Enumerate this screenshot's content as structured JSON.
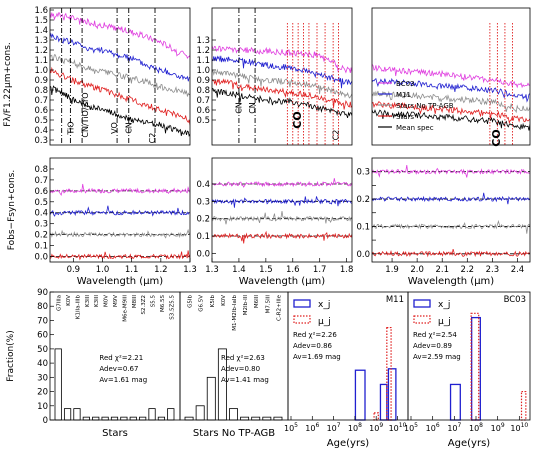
{
  "chart_data": [
    {
      "id": "spec1",
      "type": "line",
      "panel": "top-left",
      "ylabel": "Fλ/F1.22μm+cons.",
      "xlim": [
        0.82,
        1.3
      ],
      "ylim": [
        0.25,
        1.62
      ],
      "yticks": [
        0.3,
        0.4,
        0.5,
        0.6,
        0.7,
        0.8,
        0.9,
        1.0,
        1.1,
        1.2,
        1.3,
        1.4,
        1.5,
        1.6
      ],
      "ytick_labels": [
        "0.3",
        "0.4",
        "0.5",
        "0.6",
        "0.7",
        "0.8",
        "0.9",
        "1.0",
        "1.1",
        "1.2",
        "1.3",
        "1.4",
        "1.5",
        "1.6"
      ],
      "series": [
        {
          "color": "#e040e0",
          "x": [
            0.82,
            0.86,
            0.9,
            0.95,
            1.0,
            1.05,
            1.1,
            1.15,
            1.2,
            1.25,
            1.3
          ],
          "y": [
            1.55,
            1.55,
            1.52,
            1.48,
            1.45,
            1.42,
            1.38,
            1.33,
            1.28,
            1.2,
            1.12
          ]
        },
        {
          "color": "#2020d0",
          "x": [
            0.82,
            0.86,
            0.9,
            0.95,
            1.0,
            1.05,
            1.1,
            1.15,
            1.2,
            1.25,
            1.3
          ],
          "y": [
            1.35,
            1.3,
            1.28,
            1.22,
            1.2,
            1.15,
            1.12,
            1.05,
            1.0,
            0.95,
            0.9
          ]
        },
        {
          "color": "#909090",
          "x": [
            0.82,
            0.86,
            0.9,
            0.95,
            1.0,
            1.05,
            1.1,
            1.15,
            1.2,
            1.25,
            1.3
          ],
          "y": [
            1.15,
            1.1,
            1.08,
            1.02,
            0.98,
            0.95,
            0.92,
            0.88,
            0.83,
            0.8,
            0.75
          ]
        },
        {
          "color": "#e02020",
          "x": [
            0.82,
            0.86,
            0.9,
            0.95,
            1.0,
            1.05,
            1.1,
            1.15,
            1.2,
            1.25,
            1.3
          ],
          "y": [
            1.0,
            0.95,
            0.9,
            0.85,
            0.8,
            0.75,
            0.7,
            0.65,
            0.6,
            0.55,
            0.5
          ]
        },
        {
          "color": "#000000",
          "x": [
            0.82,
            0.86,
            0.9,
            0.95,
            1.0,
            1.05,
            1.1,
            1.15,
            1.2,
            1.25,
            1.3
          ],
          "y": [
            0.82,
            0.78,
            0.7,
            0.65,
            0.6,
            0.55,
            0.5,
            0.48,
            0.45,
            0.4,
            0.35
          ]
        }
      ],
      "vlines": [
        0.86,
        0.89,
        0.93,
        1.05,
        1.09,
        1.18
      ],
      "vline_style": "dashdot",
      "annotations": [
        {
          "text": "TiO",
          "x": 0.9,
          "y": 0.42,
          "rotate": true
        },
        {
          "text": "CN/TiO/ZrO",
          "x": 0.95,
          "y": 0.55,
          "rotate": true
        },
        {
          "text": "VO",
          "x": 1.05,
          "y": 0.42,
          "rotate": true
        },
        {
          "text": "CN",
          "x": 1.1,
          "y": 0.42,
          "rotate": true
        },
        {
          "text": "C2",
          "x": 1.18,
          "y": 0.32,
          "rotate": true
        }
      ]
    },
    {
      "id": "spec2",
      "type": "line",
      "panel": "top-middle",
      "xlim": [
        1.3,
        1.82
      ],
      "ylim": [
        0.25,
        1.62
      ],
      "yticks": [
        0.5,
        0.6,
        0.7,
        0.8,
        0.9,
        1.0,
        1.1,
        1.2,
        1.3
      ],
      "ytick_labels": [
        "0.5",
        "0.6",
        "0.7",
        "0.8",
        "0.9",
        "1.0",
        "1.1",
        "1.2",
        "1.3"
      ],
      "series": [
        {
          "color": "#e040e0",
          "x": [
            1.3,
            1.4,
            1.5,
            1.6,
            1.7,
            1.8
          ],
          "y": [
            1.22,
            1.2,
            1.19,
            1.17,
            1.15,
            1.0
          ]
        },
        {
          "color": "#2020d0",
          "x": [
            1.3,
            1.4,
            1.5,
            1.6,
            1.7,
            1.8
          ],
          "y": [
            1.12,
            1.1,
            1.05,
            1.02,
            0.95,
            0.88
          ]
        },
        {
          "color": "#909090",
          "x": [
            1.3,
            1.4,
            1.5,
            1.6,
            1.7,
            1.8
          ],
          "y": [
            0.98,
            0.95,
            0.9,
            0.88,
            0.83,
            0.75
          ]
        },
        {
          "color": "#e02020",
          "x": [
            1.3,
            1.4,
            1.5,
            1.6,
            1.7,
            1.8
          ],
          "y": [
            0.9,
            0.85,
            0.8,
            0.78,
            0.72,
            0.66
          ]
        },
        {
          "color": "#000000",
          "x": [
            1.3,
            1.4,
            1.5,
            1.6,
            1.7,
            1.8
          ],
          "y": [
            0.8,
            0.75,
            0.7,
            0.68,
            0.62,
            0.55
          ]
        }
      ],
      "vlines": [
        1.4,
        1.46
      ],
      "vline_style": "dashdot",
      "co_lines": [
        1.58,
        1.6,
        1.62,
        1.64,
        1.66,
        1.69,
        1.72,
        1.75,
        1.77
      ],
      "annotations": [
        {
          "text": "CN",
          "x": 1.41,
          "y": 0.62,
          "rotate": true
        },
        {
          "text": "CN",
          "x": 1.46,
          "y": 0.62,
          "rotate": true
        },
        {
          "text": "CO",
          "x": 1.63,
          "y": 0.5,
          "rotate": true,
          "bold": true
        },
        {
          "text": "C2",
          "x": 1.77,
          "y": 0.35,
          "rotate": true
        }
      ]
    },
    {
      "id": "spec3",
      "type": "line",
      "panel": "top-right",
      "xlim": [
        1.82,
        2.45
      ],
      "ylim": [
        0.25,
        1.62
      ],
      "series": [
        {
          "name": "BC03",
          "color": "#e040e0",
          "x": [
            1.82,
            1.9,
            2.0,
            2.1,
            2.2,
            2.3,
            2.4
          ],
          "y": [
            1.03,
            1.0,
            0.98,
            0.96,
            0.93,
            0.9,
            0.85
          ]
        },
        {
          "name": "M11",
          "color": "#2020d0",
          "x": [
            1.82,
            1.9,
            2.0,
            2.1,
            2.2,
            2.3,
            2.4
          ],
          "y": [
            0.9,
            0.88,
            0.86,
            0.84,
            0.82,
            0.8,
            0.74
          ]
        },
        {
          "name": "Stars No TP-AGB",
          "color": "#909090",
          "x": [
            1.82,
            1.9,
            2.0,
            2.1,
            2.2,
            2.3,
            2.4
          ],
          "y": [
            0.77,
            0.76,
            0.74,
            0.72,
            0.7,
            0.68,
            0.62
          ]
        },
        {
          "name": "Stars",
          "color": "#e02020",
          "x": [
            1.82,
            1.9,
            2.0,
            2.1,
            2.2,
            2.3,
            2.4
          ],
          "y": [
            0.66,
            0.65,
            0.63,
            0.61,
            0.59,
            0.57,
            0.51
          ]
        },
        {
          "name": "Mean spec",
          "color": "#000000",
          "x": [
            1.82,
            1.9,
            2.0,
            2.1,
            2.2,
            2.3,
            2.4
          ],
          "y": [
            0.58,
            0.56,
            0.55,
            0.53,
            0.51,
            0.49,
            0.43
          ]
        }
      ],
      "co_lines": [
        2.29,
        2.32,
        2.35,
        2.38
      ],
      "annotations": [
        {
          "text": "CO",
          "x": 2.33,
          "y": 0.32,
          "rotate": true,
          "bold": true
        }
      ],
      "legend": "bottom-left"
    },
    {
      "id": "res1",
      "type": "line",
      "panel": "middle-left",
      "ylabel": "Fobs−Fsyn+cons.",
      "xlabel": "Wavelength (μm)",
      "xlim": [
        0.82,
        1.3
      ],
      "ylim": [
        -0.05,
        0.9
      ],
      "xticks": [
        0.9,
        1.0,
        1.1,
        1.2,
        1.3
      ],
      "xtick_labels": [
        "0.9",
        "1.0",
        "1.1",
        "1.2",
        "1.3"
      ],
      "yticks": [
        0.0,
        0.1,
        0.2,
        0.3,
        0.4,
        0.5,
        0.6,
        0.7,
        0.8
      ],
      "ytick_labels": [
        "0.0",
        "0.1",
        "0.2",
        "0.3",
        "0.4",
        "0.5",
        "0.6",
        "0.7",
        "0.8"
      ],
      "offsets": [
        0.6,
        0.4,
        0.2,
        0.0
      ],
      "colors": [
        "#e040e0",
        "#2020d0",
        "#909090",
        "#e02020"
      ]
    },
    {
      "id": "res2",
      "type": "line",
      "panel": "middle-middle",
      "xlabel": "Wavelength (μm)",
      "xlim": [
        1.3,
        1.82
      ],
      "ylim": [
        -0.05,
        0.55
      ],
      "xticks": [
        1.3,
        1.4,
        1.5,
        1.6,
        1.7,
        1.8
      ],
      "xtick_labels": [
        "1.3",
        "1.4",
        "1.5",
        "1.6",
        "1.7",
        "1.8"
      ],
      "yticks": [
        0.0,
        0.1,
        0.2,
        0.3,
        0.4
      ],
      "ytick_labels": [
        "0.0",
        "0.1",
        "0.2",
        "0.3",
        "0.4"
      ],
      "offsets": [
        0.4,
        0.3,
        0.2,
        0.1
      ],
      "colors": [
        "#e040e0",
        "#2020d0",
        "#909090",
        "#e02020"
      ]
    },
    {
      "id": "res3",
      "type": "line",
      "panel": "middle-right",
      "xlabel": "Wavelength (μm)",
      "xlim": [
        1.82,
        2.45
      ],
      "ylim": [
        -0.03,
        0.35
      ],
      "xticks": [
        1.9,
        2.0,
        2.1,
        2.2,
        2.3,
        2.4
      ],
      "xtick_labels": [
        "1.9",
        "2.0",
        "2.1",
        "2.2",
        "2.3",
        "2.4"
      ],
      "yticks": [
        0.0,
        0.05,
        0.1,
        0.15,
        0.2,
        0.25,
        0.3
      ],
      "ytick_labels": [
        "0.0",
        "",
        "0.1",
        "",
        "0.2",
        "",
        "0.3"
      ],
      "offsets": [
        0.3,
        0.2,
        0.1,
        0.0
      ],
      "colors": [
        "#e040e0",
        "#2020d0",
        "#909090",
        "#e02020"
      ]
    },
    {
      "id": "hist_stars",
      "type": "bar",
      "panel": "bottom-1",
      "ylabel": "Fraction(%)",
      "xlabel": "Stars",
      "ylim": [
        0,
        90
      ],
      "yticks": [
        0,
        10,
        20,
        30,
        40,
        50,
        60,
        70,
        80,
        90
      ],
      "ytick_labels": [
        "0",
        "10",
        "20",
        "30",
        "40",
        "50",
        "60",
        "70",
        "80",
        "90"
      ],
      "categories": [
        "G7IIIa",
        "K0V",
        "K1IIa-IIIb",
        "K3III",
        "K3III",
        "M0V",
        "M9V",
        "M6e-M9III",
        "M8III",
        "S2.3Z2",
        "S5.5",
        "M6.5S",
        "S3.5Z5.5"
      ],
      "values": [
        50,
        8,
        8,
        2,
        2,
        2,
        2,
        2,
        2,
        2,
        8,
        2,
        8
      ],
      "stats": [
        "Red χ²=2.21",
        "Adev=0.67",
        "Av=1.61 mag"
      ]
    },
    {
      "id": "hist_notpagb",
      "type": "bar",
      "panel": "bottom-2",
      "xlabel": "Stars No TP-AGB",
      "ylim": [
        0,
        90
      ],
      "categories": [
        "G5Ib",
        "G6.5V",
        "K5Ib",
        "K0V",
        "M1-M2Ib-IaIb",
        "M2Ib-III",
        "M6III",
        "M7.5III",
        "C-R2+IIIe"
      ],
      "values": [
        2,
        10,
        30,
        50,
        8,
        2,
        2,
        2,
        2
      ],
      "stats": [
        "Red χ²=2.63",
        "Adev=0.80",
        "Av=1.41 mag"
      ]
    },
    {
      "id": "age_m11",
      "type": "bar",
      "panel": "bottom-3",
      "title": "M11",
      "xlabel": "Age(yrs)",
      "xscale": "log",
      "xlim": [
        5,
        10.4
      ],
      "ylim": [
        0,
        90
      ],
      "xticks": [
        5,
        6,
        7,
        8,
        9,
        10
      ],
      "xtick_labels": [
        "10^5",
        "10^6",
        "10^7",
        "10^8",
        "10^9",
        "10^10"
      ],
      "series": [
        {
          "name": "x_j",
          "style": "solid",
          "color": "#2020d0",
          "bars": [
            {
              "x": 8.25,
              "w": 0.45,
              "v": 35
            },
            {
              "x": 9.35,
              "w": 0.3,
              "v": 25
            },
            {
              "x": 9.75,
              "w": 0.35,
              "v": 36
            }
          ]
        },
        {
          "name": "μ_j",
          "style": "dotted",
          "color": "#e02020",
          "bars": [
            {
              "x": 9.0,
              "w": 0.2,
              "v": 5
            },
            {
              "x": 9.6,
              "w": 0.2,
              "v": 65
            }
          ]
        }
      ],
      "legend_labels": [
        "x_j",
        "μ_j"
      ],
      "stats": [
        "Red χ²=2.26",
        "Adev=0.86",
        "Av=1.69 mag"
      ]
    },
    {
      "id": "age_bc03",
      "type": "bar",
      "panel": "bottom-4",
      "title": "BC03",
      "xlabel": "Age(yrs)",
      "xscale": "log",
      "xlim": [
        5,
        10.4
      ],
      "ylim": [
        0,
        90
      ],
      "xticks": [
        5,
        6,
        7,
        8,
        9,
        10
      ],
      "xtick_labels": [
        "10^5",
        "10^6",
        "10^7",
        "10^8",
        "10^9",
        "10^10"
      ],
      "series": [
        {
          "name": "x_j",
          "style": "solid",
          "color": "#2020d0",
          "bars": [
            {
              "x": 7.05,
              "w": 0.45,
              "v": 25
            },
            {
              "x": 8.0,
              "w": 0.4,
              "v": 72
            }
          ]
        },
        {
          "name": "μ_j",
          "style": "dotted",
          "color": "#e02020",
          "bars": [
            {
              "x": 7.95,
              "w": 0.35,
              "v": 75
            },
            {
              "x": 10.2,
              "w": 0.2,
              "v": 20
            }
          ]
        }
      ],
      "legend_labels": [
        "x_j",
        "μ_j"
      ],
      "stats": [
        "Red χ²=2.54",
        "Adev=0.89",
        "Av=2.59 mag"
      ]
    }
  ]
}
